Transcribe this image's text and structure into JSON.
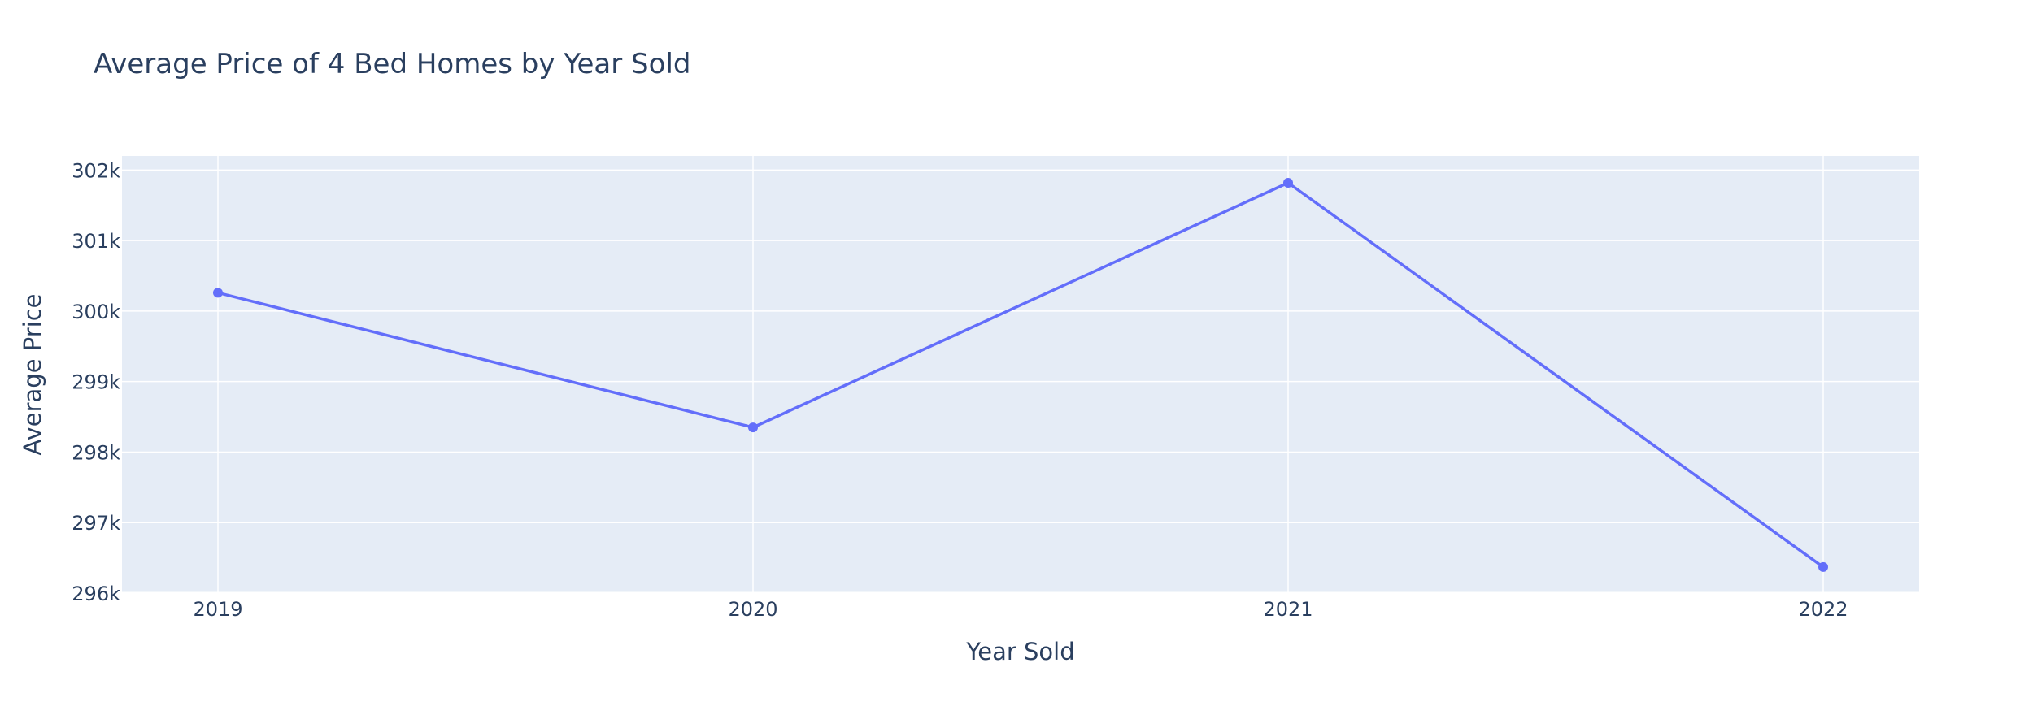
{
  "chart_data": {
    "type": "line",
    "title": "Average Price of 4 Bed Homes by Year Sold",
    "xlabel": "Year Sold",
    "ylabel": "Average Price",
    "x": [
      "2019",
      "2020",
      "2021",
      "2022"
    ],
    "series": [
      {
        "values": [
          300260,
          298350,
          301820,
          296370
        ],
        "mode": "lines+markers",
        "color": "#636efa"
      }
    ],
    "ylim": [
      296000,
      302200
    ],
    "y_ticks": [
      296000,
      297000,
      298000,
      299000,
      300000,
      301000,
      302000
    ],
    "y_tick_labels": [
      "296k",
      "297k",
      "298k",
      "299k",
      "300k",
      "301k",
      "302k"
    ],
    "grid": true,
    "legend": "none",
    "colors": {
      "plot_background": "#e5ecf6",
      "grid": "#ffffff",
      "text": "#2a3f5f",
      "line": "#636efa"
    }
  }
}
